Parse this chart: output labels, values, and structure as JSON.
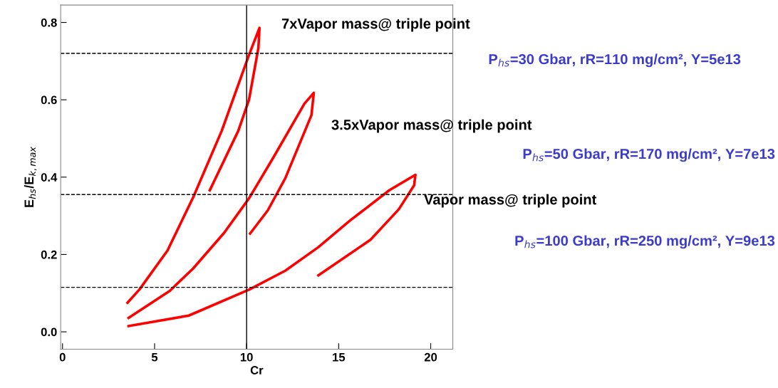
{
  "chart_data": {
    "type": "line",
    "xlabel": "Cr",
    "ylabel": "E$_{hs}$/E$_{k,max}$",
    "xlim": [
      -0.1,
      21.2
    ],
    "ylim": [
      -0.045,
      0.845
    ],
    "xticks": [
      0,
      5,
      10,
      15,
      20
    ],
    "yticks": [
      {
        "value": 0,
        "label": "0.0"
      },
      {
        "value": 0.2,
        "label": "0.2"
      },
      {
        "value": 0.4,
        "label": "0.4"
      },
      {
        "value": 0.6,
        "label": "0.6"
      },
      {
        "value": 0.8,
        "label": "0.8"
      }
    ],
    "grid": false,
    "legend": false,
    "marker": "none",
    "line_style": "solid",
    "series": [
      {
        "color": "#ff0000",
        "x": [
          3.53,
          4.17,
          5.7,
          7.1,
          8.65,
          10.13,
          10.7,
          10.64,
          10.13,
          9.55,
          8.0
        ],
        "values": [
          0.075,
          0.109,
          0.21,
          0.348,
          0.52,
          0.716,
          0.786,
          0.734,
          0.6,
          0.52,
          0.366
        ]
      },
      {
        "color": "#ff0000",
        "x": [
          3.59,
          5.83,
          7.1,
          8.78,
          10.13,
          11.47,
          13.14,
          13.65,
          13.52,
          12.1,
          11.15,
          10.19
        ],
        "values": [
          0.036,
          0.106,
          0.164,
          0.256,
          0.345,
          0.452,
          0.59,
          0.618,
          0.56,
          0.397,
          0.314,
          0.254
        ]
      },
      {
        "color": "#ff0000",
        "x": [
          3.59,
          6.86,
          10.13,
          12.1,
          13.9,
          15.6,
          17.75,
          19.17,
          19.1,
          18.27,
          16.73,
          13.9
        ],
        "values": [
          0.015,
          0.042,
          0.109,
          0.158,
          0.219,
          0.287,
          0.366,
          0.406,
          0.379,
          0.317,
          0.238,
          0.146
        ]
      }
    ],
    "ref_lines": [
      {
        "axis": "y",
        "value": 0.72,
        "color": "#000000",
        "line_style": "dashed"
      },
      {
        "axis": "y",
        "value": 0.355,
        "color": "#000000",
        "line_style": "dashed"
      },
      {
        "axis": "y",
        "value": 0.115,
        "color": "#000000",
        "line_style": "dashed"
      },
      {
        "axis": "x",
        "value": 10,
        "color": "#000000",
        "line_style": "solid"
      }
    ],
    "annotations": [
      "7xVapor mass@ triple point",
      "P$_{hs}$=30 Gbar, rR=110 mg/cm², Y=5e13",
      "3.5xVapor mass@ triple point",
      "P$_{hs}$=50 Gbar, rR=170 mg/cm², Y=7e13",
      "Vapor mass@ triple point",
      "P$_{hs}$=100 Gbar, rR=250 mg/cm², Y=9e13"
    ]
  }
}
